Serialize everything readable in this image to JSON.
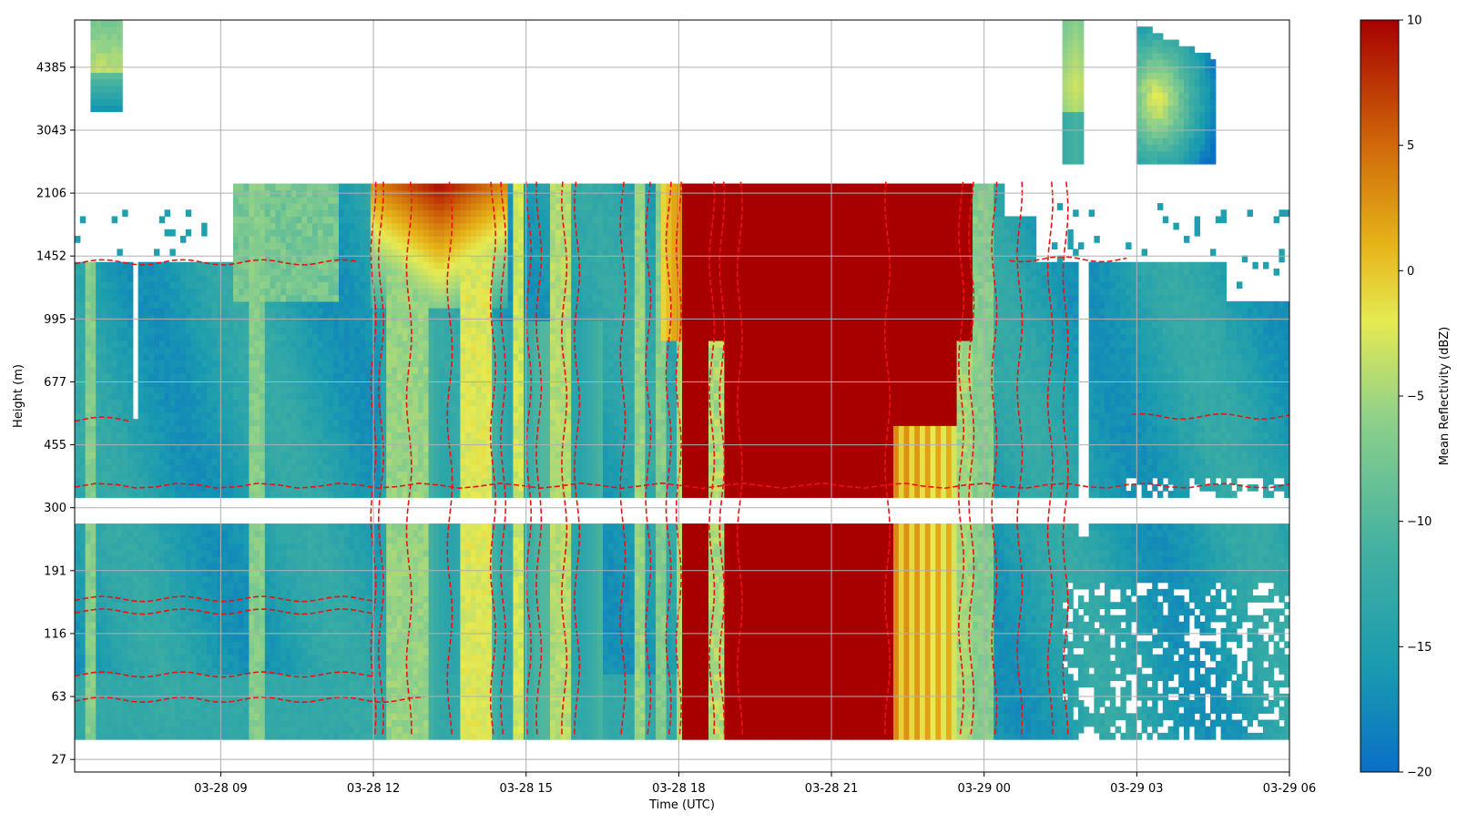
{
  "chart_data": {
    "type": "heatmap",
    "title": "",
    "xlabel": "Time (UTC)",
    "ylabel": "Height (m)",
    "colorbar_label": "Mean Reflectivity (dBZ)",
    "x_ticks": [
      "03-28 09",
      "03-28 12",
      "03-28 15",
      "03-28 18",
      "03-28 21",
      "03-29 00",
      "03-29 03",
      "03-29 06"
    ],
    "y_ticks": [
      "27",
      "63",
      "116",
      "191",
      "300",
      "455",
      "677",
      "995",
      "1452",
      "2106",
      "3043",
      "4385"
    ],
    "colorbar_ticks": [
      "10",
      "5",
      "0",
      "−5",
      "−10",
      "−15",
      "−20"
    ],
    "x_range_hours": [
      6.13,
      30.0
    ],
    "y_range_index": [
      -0.2,
      11.75
    ],
    "color_range": [
      -20,
      10
    ],
    "colormap": [
      "#0a6fc7",
      "#1a9bb0",
      "#44b1a1",
      "#8ed08a",
      "#e6ea52",
      "#e6b419",
      "#d06b0a",
      "#a80000"
    ],
    "grid": true,
    "contour_color": "#ee1111",
    "contour_style": "dashed"
  }
}
